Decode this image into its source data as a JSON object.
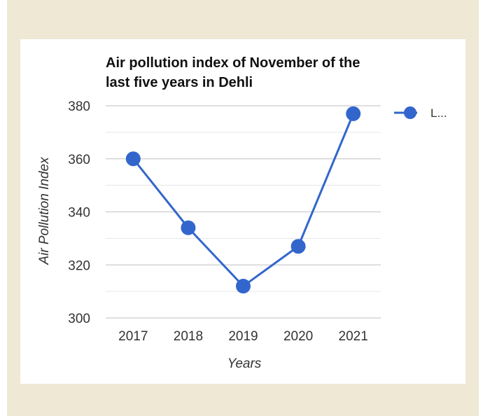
{
  "chart_data": {
    "type": "line",
    "title_lines": [
      "Air pollution index of November of the",
      "last five years in Dehli"
    ],
    "xlabel": "Years",
    "ylabel": "Air Pollution Index",
    "categories": [
      "2017",
      "2018",
      "2019",
      "2020",
      "2021"
    ],
    "series": [
      {
        "name": "L...",
        "values": [
          360,
          334,
          312,
          327,
          377
        ],
        "color": "#3366cc"
      }
    ],
    "ylim": [
      300,
      380
    ],
    "yticks": [
      300,
      320,
      340,
      360,
      380
    ],
    "grid": true,
    "legend_position": "right"
  },
  "colors": {
    "background_frame": "#efe8d5",
    "card": "#ffffff",
    "gridline": "#cccccc",
    "minor_gridline": "#e6e6e6"
  }
}
